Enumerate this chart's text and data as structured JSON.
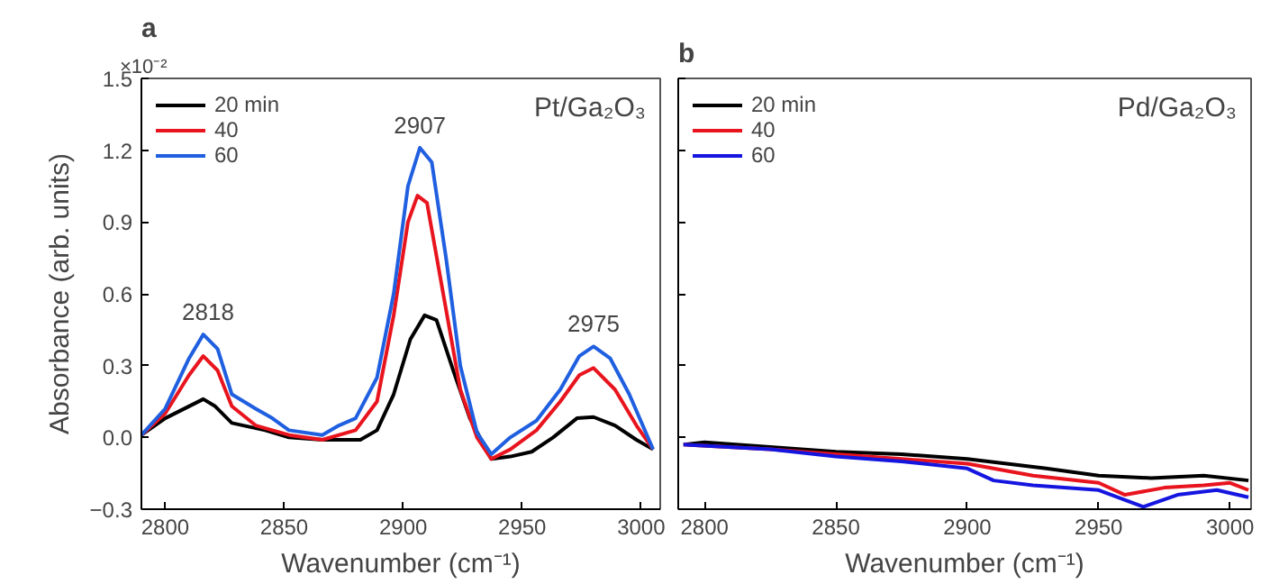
{
  "chart_data": [
    {
      "type": "line",
      "title": "a",
      "xlabel": "Wavenumber (cm⁻¹)",
      "ylabel": "Absorbance (arb. units)",
      "xlim": [
        2790,
        3008
      ],
      "ylim": [
        -0.3,
        1.5
      ],
      "xticks": [
        2800,
        2850,
        2900,
        2950,
        3000
      ],
      "yticks": [
        -0.3,
        {
          "value": 0,
          "label": "0.0"
        },
        0.3,
        0.6,
        0.9,
        1.2,
        1.5
      ],
      "grid": false,
      "legend": "top left",
      "line_style": "solid",
      "annotations": [
        "Pt/Ga₂O₃",
        {
          "text": "×10⁻²"
        },
        {
          "text": "2818",
          "x": 2818,
          "y": 0.43
        },
        {
          "text": "2907",
          "x": 2907,
          "y": 1.21
        },
        {
          "text": "2975",
          "x": 2980,
          "y": 0.38
        }
      ],
      "series": [
        {
          "name": "20 min",
          "color": "#000000",
          "x": [
            2790,
            2800,
            2816,
            2821,
            2828,
            2842,
            2852,
            2866,
            2882,
            2889,
            2896,
            2903,
            2909,
            2914,
            2921,
            2928,
            2937,
            2945,
            2954,
            2963,
            2973,
            2980,
            2989,
            2998,
            3005
          ],
          "values": [
            0.01,
            0.08,
            0.16,
            0.13,
            0.06,
            0.03,
            0.0,
            -0.01,
            -0.01,
            0.03,
            0.18,
            0.41,
            0.51,
            0.49,
            0.28,
            0.08,
            -0.09,
            -0.08,
            -0.06,
            0.0,
            0.08,
            0.085,
            0.05,
            -0.01,
            -0.05
          ]
        },
        {
          "name": "40",
          "color": "#e8141e",
          "x": [
            2790,
            2800,
            2810,
            2816,
            2822,
            2828,
            2838,
            2852,
            2866,
            2880,
            2889,
            2896,
            2902,
            2906,
            2910,
            2917,
            2924,
            2931,
            2937,
            2945,
            2956,
            2966,
            2974,
            2980,
            2989,
            2998,
            3005
          ],
          "values": [
            0.01,
            0.1,
            0.26,
            0.34,
            0.28,
            0.13,
            0.05,
            0.01,
            -0.01,
            0.03,
            0.15,
            0.51,
            0.9,
            1.01,
            0.98,
            0.59,
            0.2,
            0.0,
            -0.09,
            -0.05,
            0.03,
            0.15,
            0.26,
            0.29,
            0.2,
            0.05,
            -0.05
          ]
        },
        {
          "name": "60",
          "color": "#1f5fe0",
          "x": [
            2790,
            2800,
            2810,
            2816,
            2822,
            2828,
            2838,
            2845,
            2852,
            2866,
            2873,
            2880,
            2889,
            2896,
            2902,
            2907,
            2912,
            2918,
            2924,
            2931,
            2937,
            2945,
            2956,
            2966,
            2974,
            2980,
            2987,
            2995,
            3005
          ],
          "values": [
            0.01,
            0.12,
            0.33,
            0.43,
            0.37,
            0.18,
            0.12,
            0.08,
            0.03,
            0.01,
            0.05,
            0.08,
            0.25,
            0.6,
            1.05,
            1.21,
            1.15,
            0.75,
            0.3,
            0.02,
            -0.07,
            0.0,
            0.07,
            0.2,
            0.34,
            0.38,
            0.33,
            0.18,
            -0.05
          ]
        }
      ]
    },
    {
      "type": "line",
      "title": "b",
      "xlabel": "Wavenumber (cm⁻¹)",
      "xlim": [
        2790,
        3008
      ],
      "ylim": [
        -0.3,
        1.5
      ],
      "tick_labels": "x",
      "xticks": [
        2800,
        2850,
        2900,
        2950,
        3000
      ],
      "yticks": [
        -0.3,
        0.0,
        0.3,
        0.6,
        0.9,
        1.2,
        1.5
      ],
      "grid": false,
      "legend": "top left",
      "line_style": "solid",
      "annotations": [
        "Pd/Ga₂O₃"
      ],
      "series": [
        {
          "name": "20 min",
          "color": "#000000",
          "x": [
            2792,
            2800,
            2825,
            2850,
            2875,
            2900,
            2930,
            2950,
            2970,
            2990,
            3007
          ],
          "values": [
            -0.03,
            -0.02,
            -0.04,
            -0.06,
            -0.07,
            -0.09,
            -0.13,
            -0.16,
            -0.17,
            -0.16,
            -0.18
          ]
        },
        {
          "name": "40",
          "color": "#e8141e",
          "x": [
            2792,
            2825,
            2850,
            2875,
            2900,
            2925,
            2950,
            2960,
            2975,
            2990,
            3000,
            3007
          ],
          "values": [
            -0.03,
            -0.05,
            -0.07,
            -0.09,
            -0.11,
            -0.16,
            -0.19,
            -0.24,
            -0.21,
            -0.2,
            -0.19,
            -0.22
          ]
        },
        {
          "name": "60",
          "color": "#1515e0",
          "x": [
            2792,
            2825,
            2850,
            2875,
            2900,
            2910,
            2925,
            2950,
            2967,
            2980,
            2995,
            3007
          ],
          "values": [
            -0.03,
            -0.05,
            -0.08,
            -0.1,
            -0.13,
            -0.18,
            -0.2,
            -0.22,
            -0.29,
            -0.24,
            -0.22,
            -0.25
          ]
        }
      ]
    }
  ]
}
